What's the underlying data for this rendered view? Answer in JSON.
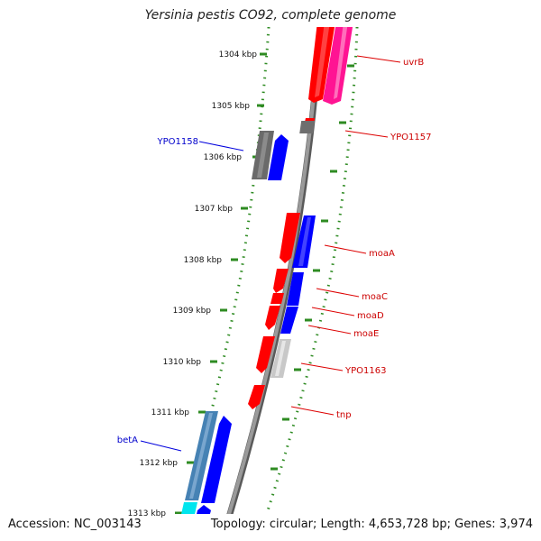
{
  "title": "Yersinia pestis CO92, complete genome",
  "accession": "Accession: NC_003143",
  "summary": "Topology: circular; Length: 4,653,728 bp; Genes: 3,974",
  "colors": {
    "ruler": "#2e8b22",
    "backbone": "#808080",
    "gene_red": "#ff0000",
    "gene_blue": "#0000ff",
    "gene_gray": "#707070",
    "gene_lightgray": "#c8c8c8",
    "gene_pink": "#ff1493",
    "gene_steel": "#4682b4",
    "gene_cyan": "#00e5ee",
    "label_red": "#cc0000",
    "label_blue": "#0000cc"
  },
  "ticks": [
    "1304 kbp",
    "1305 kbp",
    "1306 kbp",
    "1307 kbp",
    "1308 kbp",
    "1309 kbp",
    "1310 kbp",
    "1311 kbp",
    "1312 kbp",
    "1313 kbp"
  ],
  "gene_labels": {
    "uvrB": "uvrB",
    "YPO1157": "YPO1157",
    "YPO1158": "YPO1158",
    "moaA": "moaA",
    "moaC": "moaC",
    "moaD": "moaD",
    "moaE": "moaE",
    "YPO1163": "YPO1163",
    "tnp": "tnp",
    "betA": "betA"
  }
}
